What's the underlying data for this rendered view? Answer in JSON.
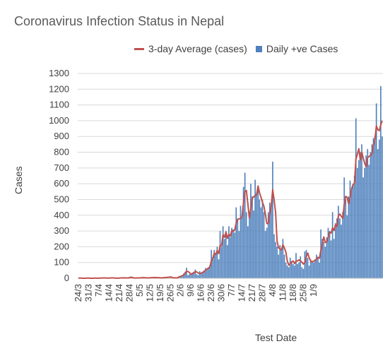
{
  "chart_data": {
    "type": "bar",
    "title": "Coronavirus Infection Status in Nepal",
    "xlabel": "Test Date",
    "ylabel": "Cases",
    "ylim": [
      0,
      1300
    ],
    "yticks": [
      0,
      100,
      200,
      300,
      400,
      500,
      600,
      700,
      800,
      900,
      1000,
      1100,
      1200,
      1300
    ],
    "grid": true,
    "legend_position": "top",
    "x_tick_labels": [
      "24/3",
      "31/3",
      "7/4",
      "14/4",
      "21/4",
      "28/4",
      "5/5",
      "12/5",
      "19/5",
      "26/5",
      "2/6",
      "9/6",
      "16/6",
      "23/6",
      "30/6",
      "7/7",
      "14/7",
      "21/7",
      "28/7",
      "4/8",
      "11/8",
      "18/8",
      "25/8",
      "1/9"
    ],
    "series": [
      {
        "name": "Daily +ve Cases",
        "kind": "bar",
        "color": "#4f81bd",
        "values": [
          1,
          1,
          0,
          0,
          0,
          1,
          1,
          0,
          0,
          0,
          1,
          1,
          0,
          1,
          0,
          2,
          1,
          3,
          1,
          0,
          2,
          1,
          3,
          1,
          2,
          1,
          0,
          0,
          2,
          3,
          1,
          4,
          1,
          0,
          3,
          10,
          4,
          1,
          0,
          2,
          3,
          1,
          3,
          5,
          4,
          2,
          3,
          1,
          5,
          2,
          6,
          5,
          3,
          4,
          4,
          3,
          2,
          5,
          3,
          6,
          4,
          8,
          10,
          6,
          3,
          1,
          4,
          2,
          6,
          15,
          12,
          20,
          30,
          40,
          67,
          20,
          25,
          30,
          35,
          40,
          55,
          25,
          20,
          45,
          30,
          40,
          50,
          65,
          60,
          70,
          82,
          180,
          120,
          180,
          150,
          200,
          120,
          300,
          200,
          330,
          250,
          300,
          210,
          330,
          260,
          320,
          310,
          290,
          450,
          380,
          300,
          460,
          400,
          580,
          670,
          420,
          330,
          400,
          600,
          520,
          430,
          625,
          540,
          590,
          500,
          450,
          500,
          420,
          300,
          320,
          420,
          480,
          470,
          740,
          280,
          230,
          200,
          150,
          210,
          180,
          250,
          150,
          100,
          80,
          70,
          130,
          110,
          90,
          80,
          160,
          90,
          100,
          140,
          70,
          60,
          170,
          180,
          130,
          80,
          120,
          110,
          100,
          120,
          150,
          130,
          100,
          310,
          250,
          230,
          200,
          260,
          320,
          300,
          240,
          420,
          250,
          350,
          380,
          460,
          380,
          340,
          420,
          640,
          500,
          400,
          520,
          620,
          560,
          600,
          650,
          1015,
          700,
          750,
          800,
          850,
          640,
          700,
          780,
          820,
          720,
          800,
          850,
          890,
          900,
          1110,
          820,
          880,
          1220,
          900
        ]
      },
      {
        "name": "3-day Average (cases)",
        "kind": "line",
        "color": "#c0504d",
        "values": [
          1,
          1,
          1,
          0,
          0,
          0,
          1,
          1,
          0,
          0,
          0,
          1,
          1,
          0,
          1,
          1,
          1,
          2,
          2,
          1,
          1,
          1,
          2,
          2,
          2,
          1,
          1,
          0,
          1,
          2,
          2,
          3,
          2,
          2,
          1,
          4,
          6,
          5,
          2,
          1,
          2,
          2,
          2,
          3,
          4,
          4,
          3,
          2,
          3,
          3,
          4,
          4,
          5,
          4,
          4,
          4,
          3,
          3,
          3,
          5,
          4,
          6,
          7,
          8,
          6,
          3,
          3,
          2,
          4,
          8,
          11,
          16,
          21,
          30,
          46,
          42,
          37,
          25,
          30,
          35,
          43,
          40,
          33,
          30,
          32,
          38,
          40,
          52,
          58,
          65,
          71,
          111,
          127,
          160,
          150,
          177,
          157,
          207,
          207,
          277,
          260,
          293,
          253,
          280,
          267,
          303,
          297,
          307,
          350,
          373,
          377,
          380,
          387,
          480,
          550,
          557,
          473,
          383,
          443,
          507,
          517,
          525,
          532,
          585,
          543,
          513,
          483,
          457,
          407,
          347,
          347,
          407,
          457,
          563,
          497,
          417,
          237,
          193,
          187,
          180,
          213,
          193,
          167,
          110,
          83,
          93,
          103,
          110,
          93,
          110,
          110,
          117,
          110,
          103,
          90,
          100,
          137,
          160,
          130,
          110,
          103,
          110,
          110,
          123,
          133,
          127,
          177,
          220,
          263,
          227,
          230,
          260,
          293,
          287,
          320,
          303,
          340,
          327,
          397,
          407,
          393,
          380,
          467,
          520,
          513,
          473,
          513,
          567,
          593,
          603,
          755,
          788,
          822,
          750,
          800,
          763,
          730,
          707,
          767,
          773,
          780,
          790,
          847,
          880,
          967,
          943,
          937,
          973,
          1000
        ]
      }
    ]
  }
}
